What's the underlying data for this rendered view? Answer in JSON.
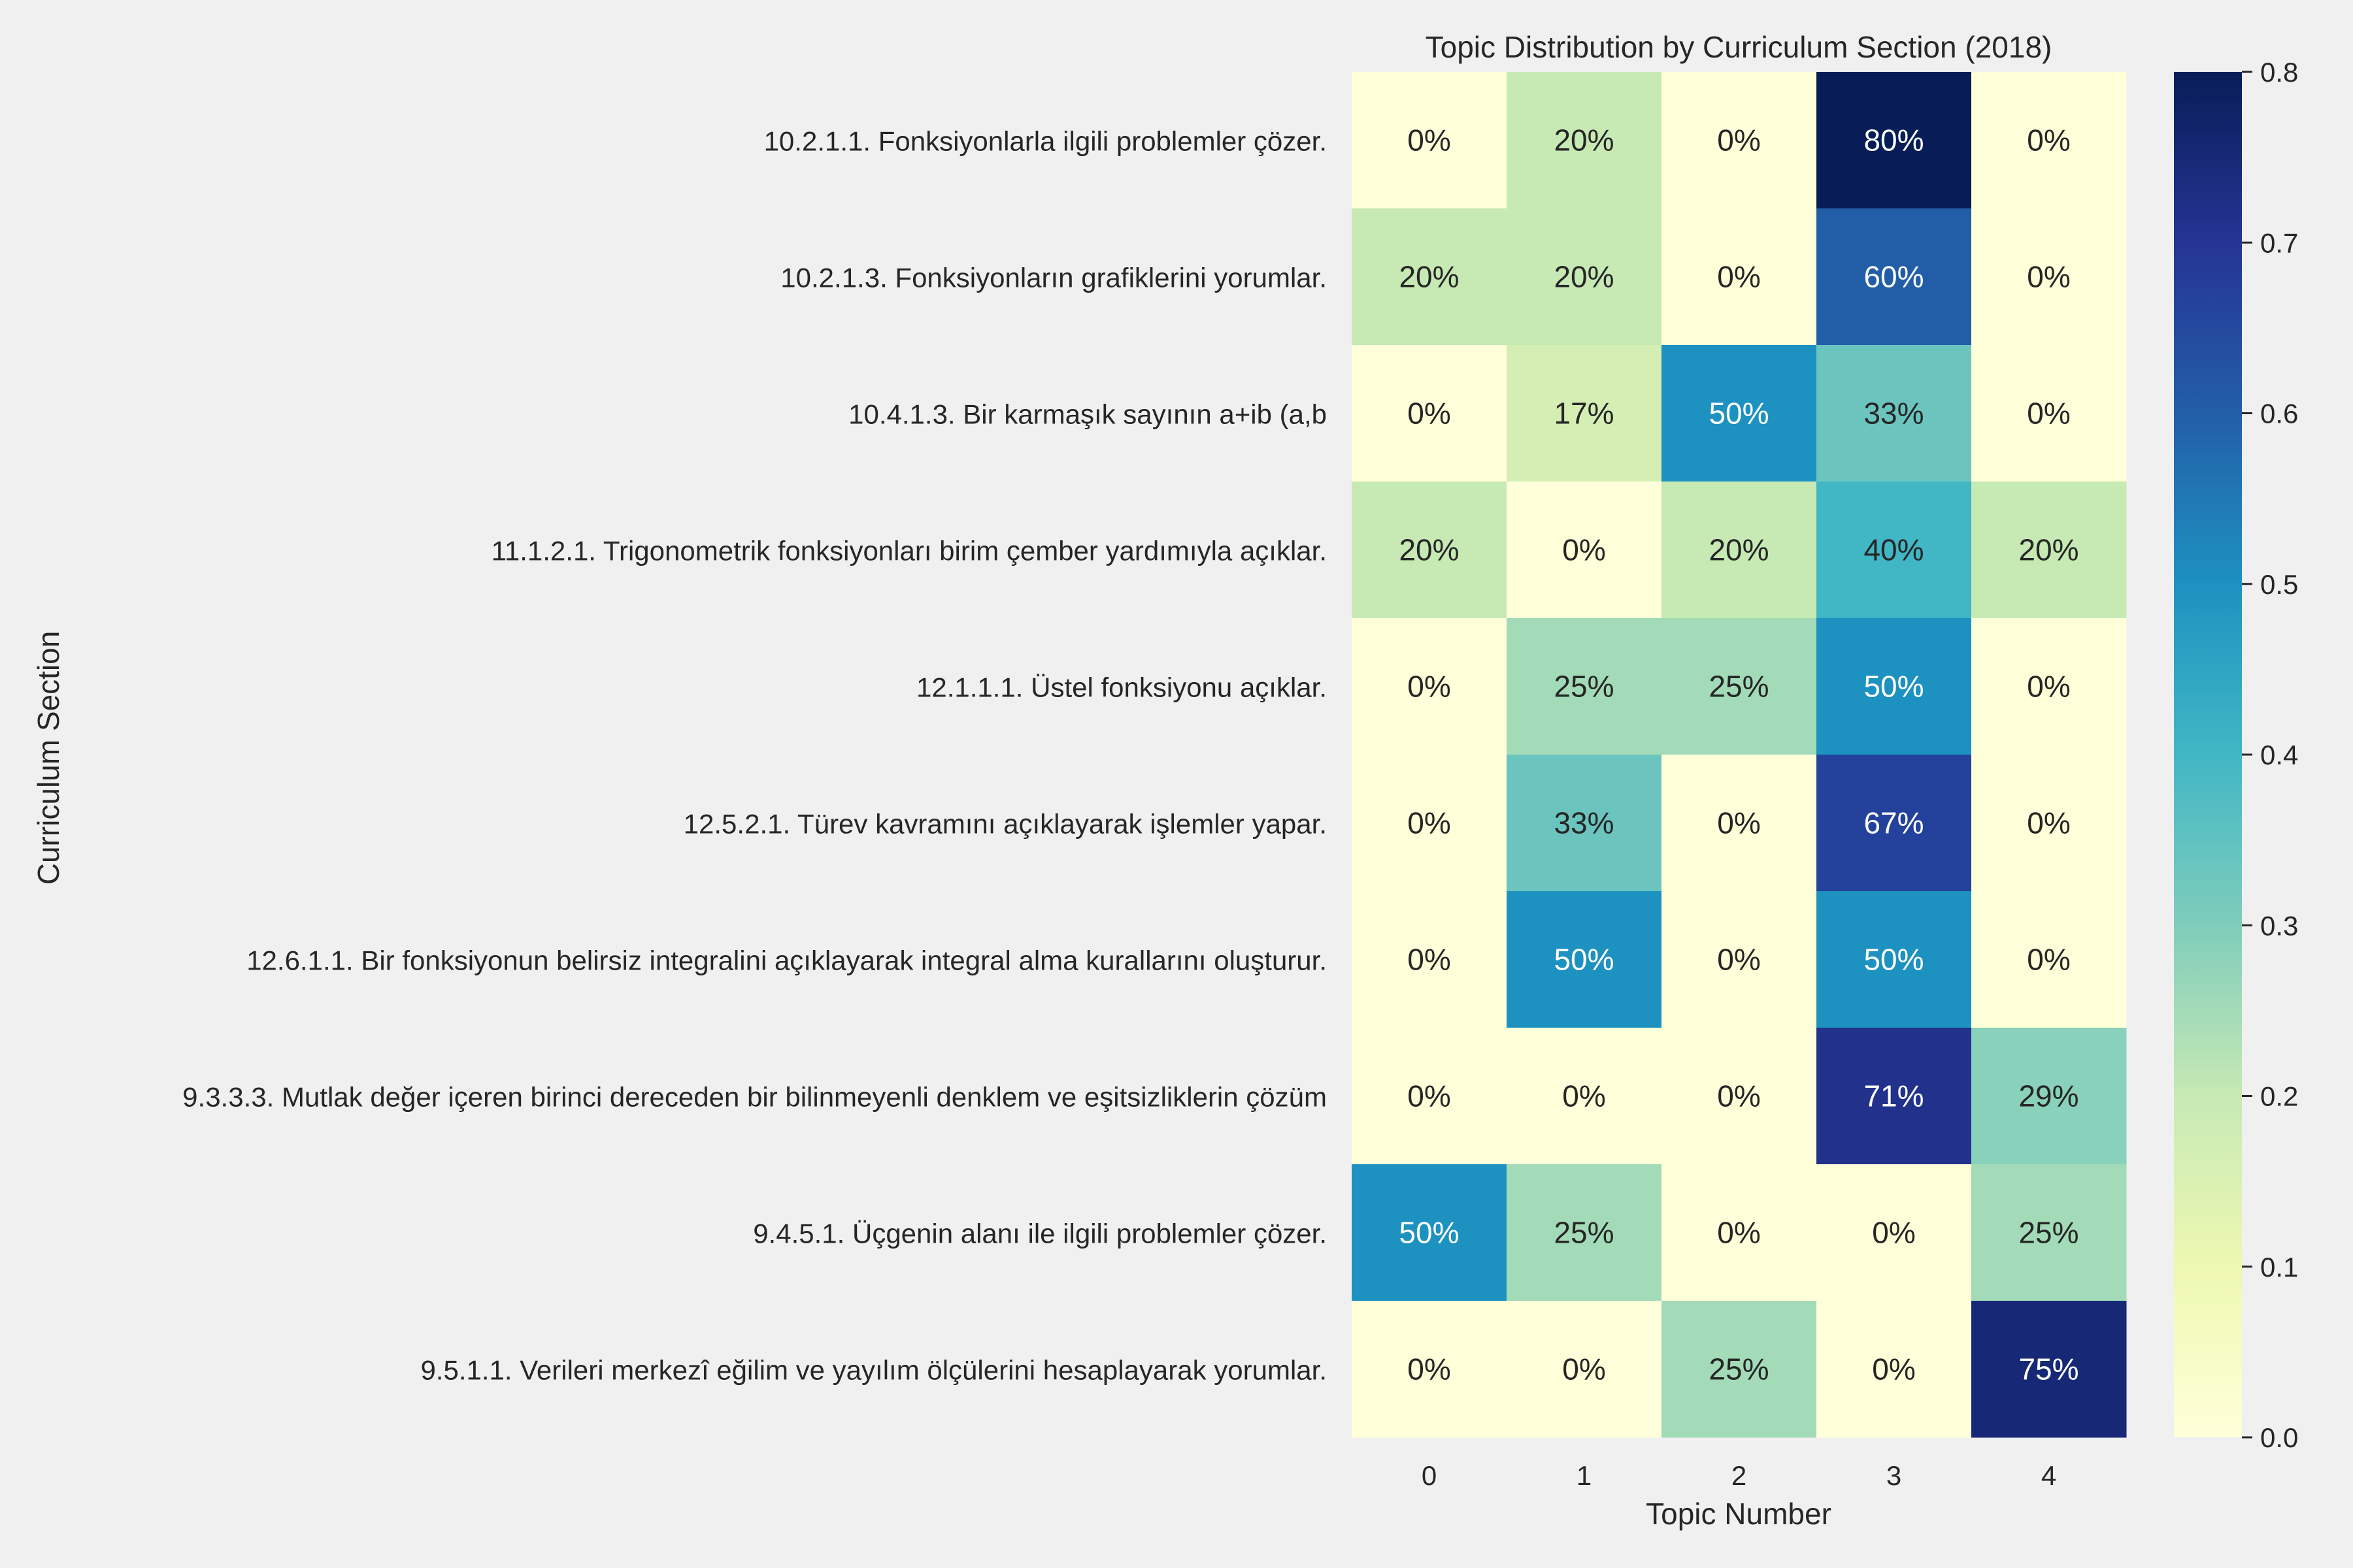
{
  "chart_data": {
    "type": "heatmap",
    "title": "Topic Distribution by Curriculum Section (2018)",
    "xlabel": "Topic Number",
    "ylabel": "Curriculum Section",
    "x_categories": [
      "0",
      "1",
      "2",
      "3",
      "4"
    ],
    "y_categories": [
      "10.2.1.1. Fonksiyonlarla ilgili problemler çözer.",
      "10.2.1.3. Fonksiyonların grafiklerini yorumlar.",
      "10.4.1.3. Bir karmaşık sayının a+ib (a,b",
      "11.1.2.1. Trigonometrik fonksiyonları birim çember yardımıyla açıklar.",
      "12.1.1.1. Üstel fonksiyonu açıklar.",
      "12.5.2.1. Türev kavramını açıklayarak işlemler yapar.",
      "12.6.1.1. Bir fonksiyonun belirsiz integralini açıklayarak integral alma kurallarını oluşturur.",
      "9.3.3.3. Mutlak değer içeren birinci dereceden bir bilinmeyenli denklem ve eşitsizliklerin çözüm",
      "9.4.5.1. Üçgenin alanı ile ilgili problemler çözer.",
      "9.5.1.1. Verileri merkezî eğilim ve yayılım ölçülerini hesaplayarak yorumlar."
    ],
    "values": [
      [
        0.0,
        0.2,
        0.0,
        0.8,
        0.0
      ],
      [
        0.2,
        0.2,
        0.0,
        0.6,
        0.0
      ],
      [
        0.0,
        0.167,
        0.5,
        0.333,
        0.0
      ],
      [
        0.2,
        0.0,
        0.2,
        0.4,
        0.2
      ],
      [
        0.0,
        0.25,
        0.25,
        0.5,
        0.0
      ],
      [
        0.0,
        0.333,
        0.0,
        0.667,
        0.0
      ],
      [
        0.0,
        0.5,
        0.0,
        0.5,
        0.0
      ],
      [
        0.0,
        0.0,
        0.0,
        0.714,
        0.286
      ],
      [
        0.5,
        0.25,
        0.0,
        0.0,
        0.25
      ],
      [
        0.0,
        0.0,
        0.25,
        0.0,
        0.75
      ]
    ],
    "cell_labels": [
      [
        "0%",
        "20%",
        "0%",
        "80%",
        "0%"
      ],
      [
        "20%",
        "20%",
        "0%",
        "60%",
        "0%"
      ],
      [
        "0%",
        "17%",
        "50%",
        "33%",
        "0%"
      ],
      [
        "20%",
        "0%",
        "20%",
        "40%",
        "20%"
      ],
      [
        "0%",
        "25%",
        "25%",
        "50%",
        "0%"
      ],
      [
        "0%",
        "33%",
        "0%",
        "67%",
        "0%"
      ],
      [
        "0%",
        "50%",
        "0%",
        "50%",
        "0%"
      ],
      [
        "0%",
        "0%",
        "0%",
        "71%",
        "29%"
      ],
      [
        "50%",
        "25%",
        "0%",
        "0%",
        "25%"
      ],
      [
        "0%",
        "0%",
        "25%",
        "0%",
        "75%"
      ]
    ],
    "colorbar": {
      "colormap": "YlGnBu",
      "range": [
        0.0,
        0.8
      ],
      "ticks": [
        "0.0",
        "0.1",
        "0.2",
        "0.3",
        "0.4",
        "0.5",
        "0.6",
        "0.7",
        "0.8"
      ]
    },
    "grid": false,
    "colors": {
      "background": "#f0f0f0",
      "text": "#262626",
      "light_text": "#ffffff"
    }
  }
}
